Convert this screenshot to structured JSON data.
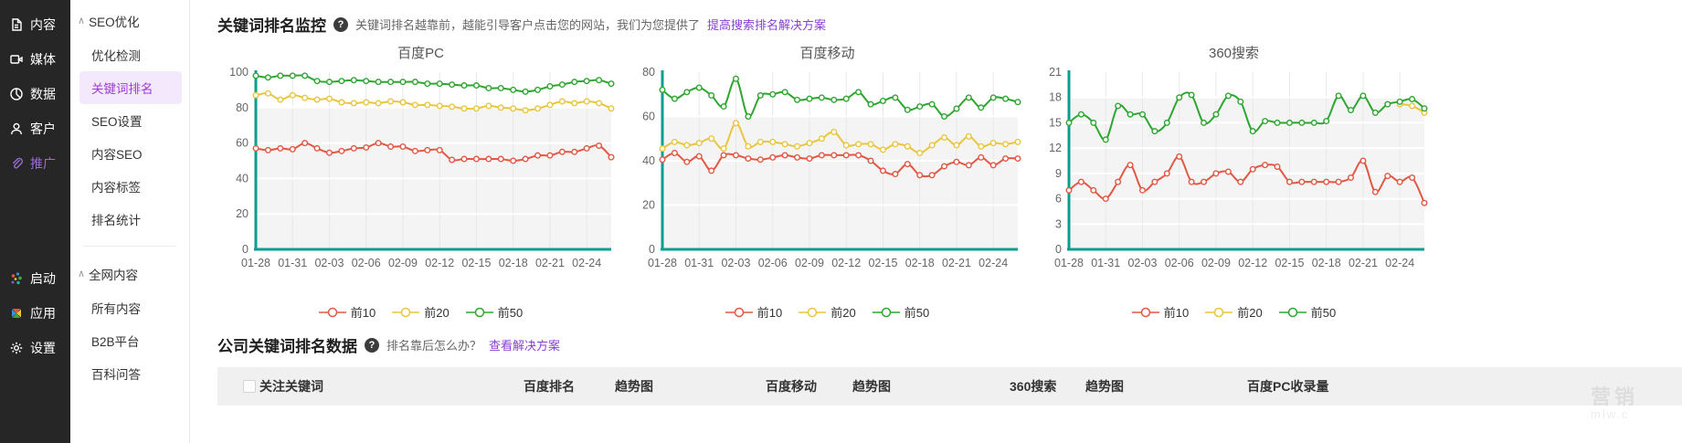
{
  "colors": {
    "top10": "#e25845",
    "top20": "#e9c63f",
    "top50": "#2fa632",
    "axis": "#0a9e90",
    "link": "#8a3fd1",
    "active_purple": "#a23ad6"
  },
  "nav_rail": {
    "items": [
      {
        "id": "content",
        "label": "内容",
        "icon": "document-icon",
        "active": false
      },
      {
        "id": "media",
        "label": "媒体",
        "icon": "media-icon",
        "active": false
      },
      {
        "id": "data",
        "label": "数据",
        "icon": "pie-chart-icon",
        "active": false
      },
      {
        "id": "customer",
        "label": "客户",
        "icon": "user-icon",
        "active": false
      },
      {
        "id": "promotion",
        "label": "推广",
        "icon": "paperclip-icon",
        "active": true
      }
    ],
    "bottom_items": [
      {
        "id": "launch",
        "label": "启动",
        "icon": "color-dots-icon",
        "active": false
      },
      {
        "id": "apps",
        "label": "应用",
        "icon": "pinwheel-icon",
        "active": false
      },
      {
        "id": "settings",
        "label": "设置",
        "icon": "gear-icon",
        "active": false
      }
    ]
  },
  "subnav": {
    "collapse_glyph": "∧",
    "groups": [
      {
        "header": "SEO优化",
        "items": [
          {
            "id": "seo-check",
            "label": "优化检测",
            "active": false
          },
          {
            "id": "keyword-rank",
            "label": "关键词排名",
            "active": true
          },
          {
            "id": "seo-settings",
            "label": "SEO设置",
            "active": false
          },
          {
            "id": "content-seo",
            "label": "内容SEO",
            "active": false
          },
          {
            "id": "content-tags",
            "label": "内容标签",
            "active": false
          },
          {
            "id": "rank-stats",
            "label": "排名统计",
            "active": false
          }
        ]
      },
      {
        "header": "全网内容",
        "items": [
          {
            "id": "all-content",
            "label": "所有内容",
            "active": false
          },
          {
            "id": "b2b",
            "label": "B2B平台",
            "active": false
          },
          {
            "id": "baike",
            "label": "百科问答",
            "active": false
          }
        ]
      }
    ]
  },
  "monitor_section": {
    "title": "关键词排名监控",
    "help_glyph": "?",
    "desc": "关键词排名越靠前，越能引导客户点击您的网站，我们为您提供了",
    "link": "提高搜索排名解决方案"
  },
  "table_section": {
    "title": "公司关键词排名数据",
    "help_glyph": "?",
    "desc": "排名靠后怎么办？",
    "link": "查看解决方案",
    "columns": [
      "关注关键词",
      "百度排名",
      "趋势图",
      "百度移动",
      "趋势图",
      "360搜索",
      "趋势图",
      "百度PC收录量"
    ]
  },
  "watermark": {
    "line1": "营销",
    "line2": "mlw.c"
  },
  "chart_data": [
    {
      "type": "line",
      "title": "百度PC",
      "x_labels": [
        "01-28",
        "01-31",
        "02-03",
        "02-06",
        "02-09",
        "02-12",
        "02-15",
        "02-18",
        "02-21",
        "02-24"
      ],
      "label_every": 3,
      "points": 30,
      "ylim": [
        0,
        100
      ],
      "yticks": [
        0,
        20,
        40,
        60,
        80,
        100
      ],
      "grid": true,
      "legend_position": "bottom",
      "series": [
        {
          "name": "前10",
          "color": "#e25845",
          "values": [
            57,
            56,
            57,
            56.5,
            60,
            57,
            54.5,
            55.5,
            57,
            57.5,
            60,
            58,
            58,
            55.5,
            56,
            56,
            50.5,
            51,
            51,
            51,
            51,
            50,
            51,
            53,
            53,
            55,
            55,
            57,
            58.5,
            52
          ]
        },
        {
          "name": "前20",
          "color": "#e9c63f",
          "values": [
            87,
            88,
            84.5,
            87,
            85.5,
            84.5,
            85,
            83,
            82.5,
            83,
            82.5,
            83.5,
            83,
            81.5,
            81.5,
            81,
            80.5,
            79.5,
            79.5,
            81,
            80,
            79.5,
            78.5,
            79.5,
            81.5,
            83.5,
            82.5,
            83.5,
            82.5,
            79.5
          ]
        },
        {
          "name": "前50",
          "color": "#2fa632",
          "values": [
            98,
            97,
            98,
            98,
            98,
            95,
            94.5,
            95,
            95.5,
            95,
            94.5,
            94.5,
            94.5,
            94.5,
            93.5,
            93.5,
            93,
            92.5,
            92.5,
            91,
            91,
            90,
            89,
            90,
            92,
            93,
            94.5,
            95,
            95.5,
            93.5
          ]
        }
      ]
    },
    {
      "type": "line",
      "title": "百度移动",
      "x_labels": [
        "01-28",
        "01-31",
        "02-03",
        "02-06",
        "02-09",
        "02-12",
        "02-15",
        "02-18",
        "02-21",
        "02-24"
      ],
      "label_every": 3,
      "points": 30,
      "ylim": [
        0,
        80
      ],
      "yticks": [
        0,
        20,
        40,
        60,
        80
      ],
      "grid": true,
      "legend_position": "bottom",
      "series": [
        {
          "name": "前10",
          "color": "#e25845",
          "values": [
            40.5,
            43.5,
            39.5,
            42,
            35.5,
            42.5,
            42.5,
            41,
            40.5,
            41.5,
            42.5,
            41.5,
            41,
            42.5,
            42.5,
            42.5,
            42.5,
            40,
            35.5,
            34,
            38.5,
            33.5,
            33.5,
            37.5,
            39.5,
            38,
            41.5,
            38,
            41,
            41
          ]
        },
        {
          "name": "前20",
          "color": "#e9c63f",
          "values": [
            45.5,
            48.5,
            47,
            48,
            50,
            45.5,
            57,
            46.5,
            48.5,
            48.5,
            47.5,
            46.5,
            48,
            50,
            53,
            47,
            47.5,
            47.5,
            45,
            47.5,
            46.5,
            43.5,
            47,
            50.5,
            47,
            51,
            46.5,
            48,
            47.5,
            48.5
          ]
        },
        {
          "name": "前50",
          "color": "#2fa632",
          "values": [
            72,
            68,
            71,
            73,
            69.5,
            64.5,
            77,
            60,
            69.5,
            70,
            71,
            67.5,
            68,
            68.5,
            67.5,
            68,
            71,
            65.5,
            67,
            68.5,
            63,
            64.5,
            65.5,
            60,
            63.5,
            68.5,
            64,
            68.5,
            68,
            66.5
          ]
        }
      ]
    },
    {
      "type": "line",
      "title": "360搜索",
      "x_labels": [
        "01-28",
        "01-31",
        "02-03",
        "02-06",
        "02-09",
        "02-12",
        "02-15",
        "02-18",
        "02-21",
        "02-24"
      ],
      "label_every": 3,
      "points": 30,
      "ylim": [
        0,
        21
      ],
      "yticks": [
        0,
        3,
        6,
        9,
        12,
        15,
        18,
        21
      ],
      "grid": true,
      "legend_position": "bottom",
      "series": [
        {
          "name": "前10",
          "color": "#e25845",
          "values": [
            7,
            8,
            7,
            6,
            8,
            10,
            7,
            8,
            9,
            11,
            8,
            8,
            9,
            9.2,
            8,
            9.5,
            10,
            9.8,
            8,
            8,
            8,
            8,
            8,
            8.5,
            10.5,
            6.8,
            8.7,
            8,
            8.5,
            5.5
          ]
        },
        {
          "name": "前20",
          "color": "#e9c63f",
          "values": [
            null,
            null,
            null,
            null,
            null,
            null,
            null,
            null,
            null,
            null,
            null,
            null,
            null,
            null,
            null,
            null,
            null,
            null,
            null,
            null,
            null,
            null,
            null,
            null,
            null,
            null,
            null,
            17.2,
            17,
            16.2
          ]
        },
        {
          "name": "前50",
          "color": "#2fa632",
          "values": [
            15,
            16,
            15,
            13,
            17,
            16,
            16,
            14,
            15,
            18,
            18.3,
            15,
            16,
            18.2,
            17.5,
            14,
            15.2,
            15,
            15,
            15,
            15,
            15.2,
            18.2,
            16.5,
            18.2,
            16.2,
            17.2,
            17.5,
            17.8,
            16.7
          ]
        }
      ]
    }
  ]
}
